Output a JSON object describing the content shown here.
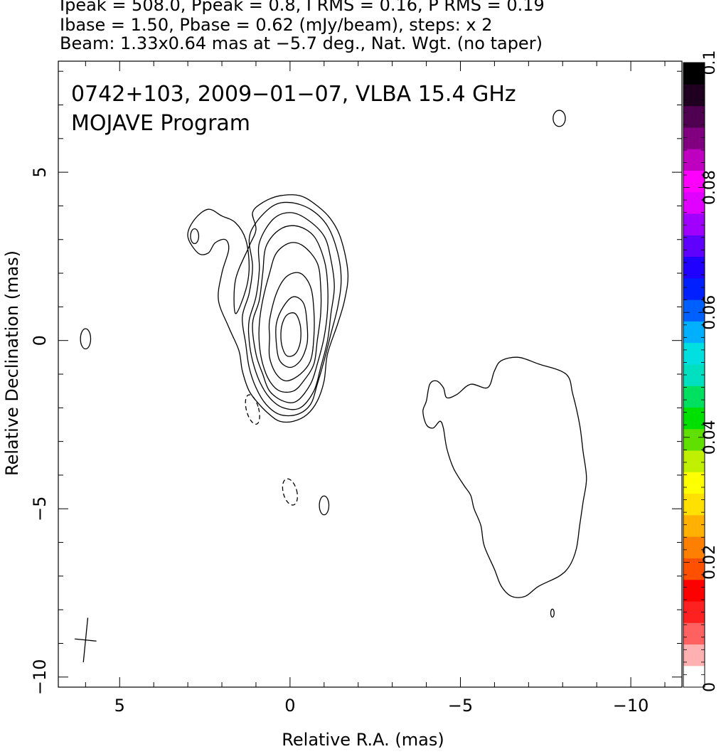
{
  "header": {
    "line1": "Ipeak = 508.0, Ppeak = 0.8, I RMS = 0.16, P RMS = 0.19",
    "line2": "Ibase = 1.50, Pbase = 0.62 (mJy/beam), steps: x 2",
    "line3": "Beam: 1.33x0.64 mas at −5.7 deg., Nat. Wgt. (no taper)"
  },
  "plot_title": {
    "line1": "0742+103, 2009−01−07, VLBA 15.4 GHz",
    "line2": "MOJAVE Program"
  },
  "chart_data": {
    "type": "contour",
    "xlabel": "Relative R.A. (mas)",
    "ylabel": "Relative Declination (mas)",
    "xlim": [
      6.8,
      -11.5
    ],
    "ylim": [
      -10.3,
      8.3
    ],
    "x_ticks": [
      5,
      0,
      -5,
      -10
    ],
    "x_tick_labels": [
      "5",
      "0",
      "−5",
      "−10"
    ],
    "y_ticks": [
      5,
      0,
      -5,
      -10
    ],
    "y_tick_labels": [
      "5",
      "0",
      "−5",
      "−10"
    ],
    "contour_base_mJy_per_beam": 1.5,
    "contour_step_factor": 2,
    "peak_position_mas": [
      0.0,
      0.2
    ],
    "core_contours": [
      {
        "level": 1,
        "points": [
          [
            1.6,
            0.8
          ],
          [
            1.3,
            1.5
          ],
          [
            1.2,
            2.2
          ],
          [
            1.3,
            3.0
          ],
          [
            1.6,
            3.5
          ],
          [
            2.0,
            3.7
          ],
          [
            2.4,
            3.9
          ],
          [
            2.8,
            3.6
          ],
          [
            3.0,
            3.1
          ],
          [
            2.7,
            2.6
          ],
          [
            2.4,
            2.6
          ],
          [
            2.2,
            2.9
          ],
          [
            1.9,
            3.0
          ],
          [
            1.8,
            2.7
          ],
          [
            2.0,
            2.0
          ],
          [
            2.1,
            1.2
          ],
          [
            1.8,
            0.4
          ],
          [
            1.5,
            -0.3
          ],
          [
            1.4,
            -0.9
          ],
          [
            1.2,
            -1.5
          ],
          [
            0.9,
            -1.9
          ],
          [
            0.6,
            -2.2
          ],
          [
            0.3,
            -2.4
          ],
          [
            -0.1,
            -2.4
          ],
          [
            -0.5,
            -2.2
          ],
          [
            -0.8,
            -1.8
          ],
          [
            -1.0,
            -1.2
          ],
          [
            -1.1,
            -0.4
          ],
          [
            -1.4,
            0.5
          ],
          [
            -1.6,
            1.2
          ],
          [
            -1.7,
            2.0
          ],
          [
            -1.5,
            3.0
          ],
          [
            -1.2,
            3.6
          ],
          [
            -0.8,
            4.0
          ],
          [
            -0.3,
            4.3
          ],
          [
            0.3,
            4.3
          ],
          [
            0.8,
            4.1
          ],
          [
            1.1,
            3.8
          ],
          [
            1.0,
            3.3
          ],
          [
            1.2,
            2.8
          ],
          [
            1.6,
            1.8
          ]
        ]
      },
      {
        "level": 2,
        "points": [
          [
            1.4,
            0.7
          ],
          [
            1.2,
            1.4
          ],
          [
            1.1,
            2.2
          ],
          [
            1.2,
            3.0
          ],
          [
            1.0,
            3.5
          ],
          [
            0.5,
            4.0
          ],
          [
            0.0,
            4.1
          ],
          [
            -0.6,
            3.9
          ],
          [
            -1.1,
            3.4
          ],
          [
            -1.4,
            2.6
          ],
          [
            -1.5,
            1.8
          ],
          [
            -1.4,
            1.0
          ],
          [
            -1.2,
            0.2
          ],
          [
            -1.0,
            -0.6
          ],
          [
            -0.8,
            -1.3
          ],
          [
            -0.6,
            -1.9
          ],
          [
            -0.2,
            -2.2
          ],
          [
            0.3,
            -2.2
          ],
          [
            0.7,
            -1.9
          ],
          [
            1.0,
            -1.4
          ],
          [
            1.2,
            -0.8
          ],
          [
            1.3,
            -0.1
          ]
        ]
      },
      {
        "level": 4,
        "points": [
          [
            1.2,
            0.6
          ],
          [
            1.0,
            1.3
          ],
          [
            0.9,
            2.1
          ],
          [
            0.9,
            2.9
          ],
          [
            0.5,
            3.6
          ],
          [
            0.0,
            3.8
          ],
          [
            -0.5,
            3.6
          ],
          [
            -1.0,
            3.1
          ],
          [
            -1.2,
            2.4
          ],
          [
            -1.3,
            1.6
          ],
          [
            -1.2,
            0.8
          ],
          [
            -1.1,
            0.0
          ],
          [
            -0.9,
            -0.8
          ],
          [
            -0.7,
            -1.5
          ],
          [
            -0.3,
            -2.0
          ],
          [
            0.2,
            -2.0
          ],
          [
            0.6,
            -1.7
          ],
          [
            0.9,
            -1.2
          ],
          [
            1.1,
            -0.6
          ],
          [
            1.2,
            0.0
          ]
        ]
      },
      {
        "level": 8,
        "points": [
          [
            1.1,
            0.5
          ],
          [
            0.9,
            1.2
          ],
          [
            0.8,
            2.0
          ],
          [
            0.7,
            2.8
          ],
          [
            0.3,
            3.3
          ],
          [
            -0.2,
            3.4
          ],
          [
            -0.7,
            3.1
          ],
          [
            -1.0,
            2.4
          ],
          [
            -1.1,
            1.7
          ],
          [
            -1.1,
            0.9
          ],
          [
            -1.0,
            0.1
          ],
          [
            -0.8,
            -0.7
          ],
          [
            -0.6,
            -1.3
          ],
          [
            -0.2,
            -1.8
          ],
          [
            0.2,
            -1.8
          ],
          [
            0.6,
            -1.5
          ],
          [
            0.8,
            -1.0
          ],
          [
            1.0,
            -0.4
          ]
        ]
      },
      {
        "level": 16,
        "points": [
          [
            0.9,
            0.5
          ],
          [
            0.8,
            1.2
          ],
          [
            0.6,
            2.0
          ],
          [
            0.4,
            2.6
          ],
          [
            0.0,
            2.9
          ],
          [
            -0.4,
            2.8
          ],
          [
            -0.8,
            2.3
          ],
          [
            -0.9,
            1.6
          ],
          [
            -0.9,
            0.8
          ],
          [
            -0.8,
            0.0
          ],
          [
            -0.7,
            -0.7
          ],
          [
            -0.4,
            -1.2
          ],
          [
            -0.1,
            -1.5
          ],
          [
            0.3,
            -1.5
          ],
          [
            0.6,
            -1.2
          ],
          [
            0.8,
            -0.7
          ],
          [
            0.9,
            -0.1
          ]
        ]
      },
      {
        "level": 32,
        "points": [
          [
            0.6,
            0.6
          ],
          [
            0.4,
            1.4
          ],
          [
            0.1,
            1.9
          ],
          [
            -0.3,
            2.0
          ],
          [
            -0.6,
            1.6
          ],
          [
            -0.7,
            0.9
          ],
          [
            -0.7,
            0.1
          ],
          [
            -0.6,
            -0.6
          ],
          [
            -0.3,
            -1.0
          ],
          [
            0.1,
            -1.2
          ],
          [
            0.4,
            -1.0
          ],
          [
            0.6,
            -0.5
          ],
          [
            0.6,
            0.1
          ]
        ]
      },
      {
        "level": 64,
        "points": [
          [
            0.4,
            0.5
          ],
          [
            0.2,
            1.0
          ],
          [
            -0.1,
            1.3
          ],
          [
            -0.4,
            1.1
          ],
          [
            -0.5,
            0.5
          ],
          [
            -0.5,
            -0.1
          ],
          [
            -0.3,
            -0.6
          ],
          [
            0.0,
            -0.8
          ],
          [
            0.3,
            -0.6
          ],
          [
            0.4,
            -0.1
          ]
        ]
      },
      {
        "level": 128,
        "points": [
          [
            0.25,
            0.4
          ],
          [
            0.1,
            0.75
          ],
          [
            -0.15,
            0.8
          ],
          [
            -0.3,
            0.45
          ],
          [
            -0.3,
            -0.05
          ],
          [
            -0.15,
            -0.4
          ],
          [
            0.1,
            -0.45
          ],
          [
            0.25,
            -0.1
          ]
        ]
      }
    ],
    "extended_contours": [
      {
        "level": 1,
        "points": [
          [
            -4.0,
            -1.8
          ],
          [
            -4.1,
            -1.3
          ],
          [
            -4.3,
            -1.2
          ],
          [
            -4.5,
            -1.4
          ],
          [
            -4.6,
            -1.7
          ],
          [
            -4.9,
            -1.6
          ],
          [
            -5.3,
            -1.3
          ],
          [
            -5.8,
            -1.4
          ],
          [
            -6.0,
            -0.9
          ],
          [
            -6.2,
            -0.6
          ],
          [
            -6.7,
            -0.5
          ],
          [
            -7.3,
            -0.7
          ],
          [
            -8.1,
            -1.0
          ],
          [
            -8.3,
            -1.6
          ],
          [
            -8.5,
            -2.5
          ],
          [
            -8.6,
            -3.3
          ],
          [
            -8.7,
            -4.1
          ],
          [
            -8.6,
            -4.8
          ],
          [
            -8.5,
            -5.5
          ],
          [
            -8.4,
            -6.2
          ],
          [
            -8.2,
            -6.7
          ],
          [
            -7.9,
            -7.0
          ],
          [
            -7.3,
            -7.3
          ],
          [
            -6.9,
            -7.6
          ],
          [
            -6.5,
            -7.6
          ],
          [
            -6.2,
            -7.3
          ],
          [
            -6.0,
            -6.8
          ],
          [
            -5.7,
            -6.1
          ],
          [
            -5.6,
            -5.5
          ],
          [
            -5.4,
            -5.0
          ],
          [
            -5.3,
            -4.6
          ],
          [
            -5.1,
            -4.3
          ],
          [
            -4.8,
            -3.8
          ],
          [
            -4.6,
            -3.2
          ],
          [
            -4.5,
            -2.6
          ],
          [
            -4.4,
            -2.4
          ],
          [
            -4.2,
            -2.6
          ],
          [
            -4.0,
            -2.5
          ],
          [
            -3.9,
            -2.1
          ]
        ]
      }
    ],
    "small_contours": [
      {
        "level": 1,
        "center": [
          6.0,
          0.05
        ],
        "rx": 0.15,
        "ry": 0.3
      },
      {
        "level": 1,
        "center": [
          2.8,
          3.1
        ],
        "rx": 0.12,
        "ry": 0.22
      },
      {
        "level": 1,
        "center": [
          -1.0,
          -4.9
        ],
        "rx": 0.14,
        "ry": 0.28
      },
      {
        "level": 1,
        "center": [
          -7.9,
          6.6
        ],
        "rx": 0.18,
        "ry": 0.24
      },
      {
        "level": 1,
        "center": [
          -7.7,
          -8.1
        ],
        "rx": 0.05,
        "ry": 0.12
      },
      {
        "level": -1,
        "center": [
          1.1,
          -2.05
        ],
        "rx": 0.18,
        "ry": 0.45
      },
      {
        "level": -1,
        "center": [
          0.0,
          -4.5
        ],
        "rx": 0.2,
        "ry": 0.4
      }
    ],
    "beam": {
      "center": [
        6.0,
        -8.9
      ],
      "major_mas": 1.33,
      "minor_mas": 0.64,
      "pa_deg": -5.7
    },
    "colorbar": {
      "min": 0,
      "max": 0.1,
      "tick_labels": [
        "0",
        "0.02",
        "0.04",
        "0.06",
        "0.08",
        "0.1"
      ],
      "tick_values": [
        0,
        0.02,
        0.04,
        0.06,
        0.08,
        0.1
      ],
      "colors": [
        "#ffffff",
        "#ffb0b0",
        "#ff6060",
        "#ff2020",
        "#ff0000",
        "#ff5000",
        "#ff8000",
        "#ffb000",
        "#ffe000",
        "#ffff00",
        "#c0f000",
        "#60e000",
        "#00e000",
        "#00e060",
        "#00e0c0",
        "#00e0e0",
        "#00b0ff",
        "#0060ff",
        "#0020ff",
        "#2000ff",
        "#6000ff",
        "#a000ff",
        "#e000ff",
        "#ff00ff",
        "#c000c0",
        "#800080",
        "#500050",
        "#200020",
        "#000000"
      ]
    }
  }
}
